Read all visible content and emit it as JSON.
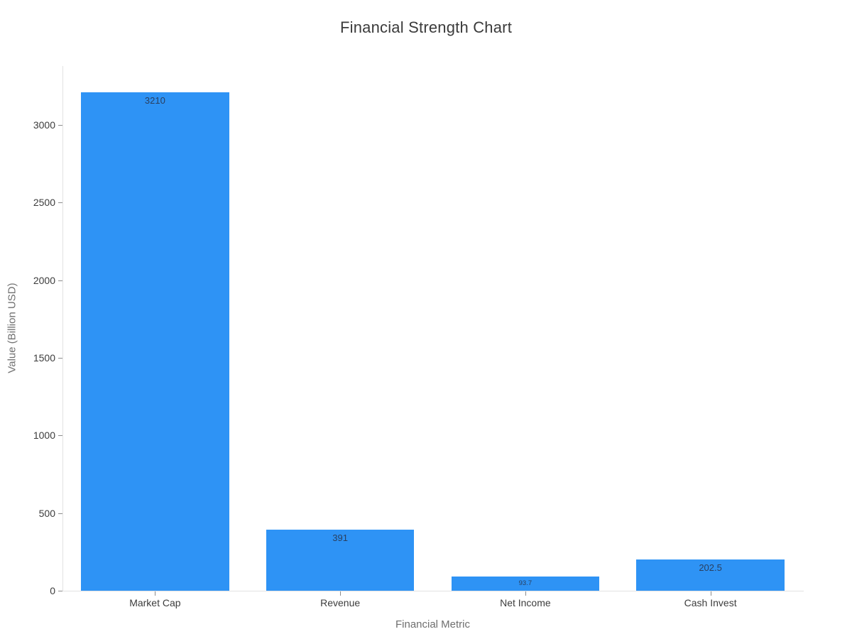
{
  "chart_data": {
    "type": "bar",
    "title": "Financial Strength Chart",
    "xlabel": "Financial Metric",
    "ylabel": "Value (Billion USD)",
    "categories": [
      "Market Cap",
      "Revenue",
      "Net Income",
      "Cash Invest"
    ],
    "values": [
      3210,
      391,
      93.7,
      202.5
    ],
    "bar_labels": [
      "3210",
      "391",
      "93.7",
      "202.5"
    ],
    "ylim": [
      0,
      3379
    ],
    "yticks": [
      0,
      500,
      1000,
      1500,
      2000,
      2500,
      3000
    ],
    "grid": false,
    "legend": "none",
    "colors": {
      "bar": "#2E93F5",
      "bar_label": "#2a3f5f",
      "title": "#3b3b3b",
      "axis_title": "#6f6f6f",
      "tick_label": "#3c3c3c",
      "tick_mark": "#8c8c8c",
      "axis_line": "#e2e2e2",
      "background": "#ffffff"
    }
  }
}
